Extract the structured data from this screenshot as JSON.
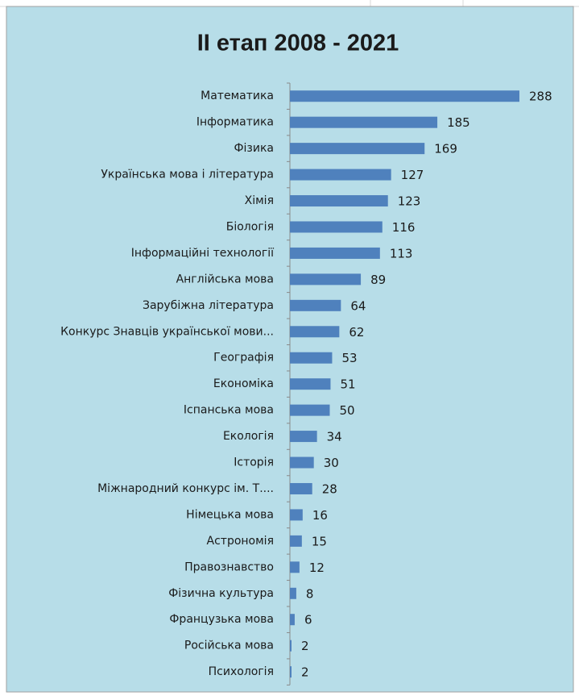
{
  "chart_data": {
    "type": "bar",
    "orientation": "horizontal",
    "title": "ІІ етап 2008 - 2021",
    "categories": [
      "Математика",
      "Інформатика",
      "Фізика",
      "Українська мова і література",
      "Хімія",
      "Біологія",
      "Інформаційні технології",
      "Англійська мова",
      "Зарубіжна література",
      "Конкурс Знавців української мови...",
      "Географія",
      "Економіка",
      "Іспанська мова",
      "Екологія",
      "Історія",
      "Міжнародний конкурс ім. Т....",
      "Німецька мова",
      "Астрономія",
      "Правознавство",
      "Фізична культура",
      "Французька мова",
      "Російська мова",
      "Психологія"
    ],
    "values": [
      288,
      185,
      169,
      127,
      123,
      116,
      113,
      89,
      64,
      62,
      53,
      51,
      50,
      34,
      30,
      28,
      16,
      15,
      12,
      8,
      6,
      2,
      2
    ],
    "color": "#4f81bd"
  }
}
